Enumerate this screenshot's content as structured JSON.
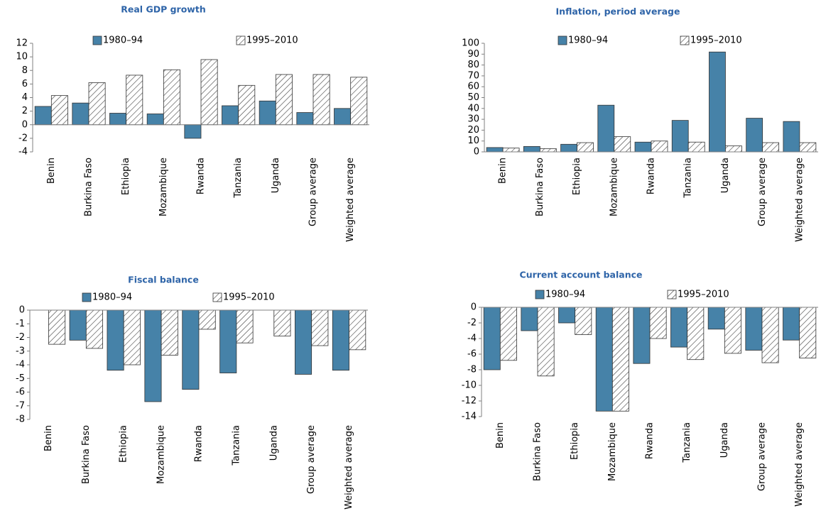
{
  "chart_data": [
    {
      "type": "bar",
      "title": "Real GDP growth",
      "categories": [
        "Benin",
        "Burkina Faso",
        "Ethiopia",
        "Mozambique",
        "Rwanda",
        "Tanzania",
        "Uganda",
        "Group average",
        "Weighted average"
      ],
      "series": [
        {
          "name": "1980–94",
          "color": "#4682a8",
          "values": [
            2.7,
            3.2,
            1.7,
            1.6,
            -2.0,
            2.8,
            3.5,
            1.8,
            2.4
          ]
        },
        {
          "name": "1995–2010",
          "color": "#404040",
          "hatch": true,
          "values": [
            4.3,
            6.2,
            7.3,
            8.1,
            9.6,
            5.8,
            7.4,
            7.4,
            7.0
          ]
        }
      ],
      "ylim": [
        -4,
        12
      ],
      "yticks": [
        -4,
        -2,
        0,
        2,
        4,
        6,
        8,
        10,
        12
      ],
      "legend": "top"
    },
    {
      "type": "bar",
      "title": "Inflation, period average",
      "categories": [
        "Benin",
        "Burkina Faso",
        "Ethiopia",
        "Mozambique",
        "Rwanda",
        "Tanzania",
        "Uganda",
        "Group average",
        "Weighted average"
      ],
      "series": [
        {
          "name": "1980–94",
          "color": "#4682a8",
          "values": [
            4,
            5,
            7,
            43,
            9,
            29,
            92,
            31,
            28
          ]
        },
        {
          "name": "1995–2010",
          "color": "#404040",
          "hatch": true,
          "values": [
            3.5,
            3,
            8.5,
            14,
            10,
            9,
            5.5,
            8.5,
            8.5
          ]
        }
      ],
      "ylim": [
        0,
        100
      ],
      "yticks": [
        0,
        10,
        20,
        30,
        40,
        50,
        60,
        70,
        80,
        90,
        100
      ],
      "legend": "top"
    },
    {
      "type": "bar",
      "title": "Fiscal balance",
      "categories": [
        "Benin",
        "Burkina Faso",
        "Ethiopia",
        "Mozambique",
        "Rwanda",
        "Tanzania",
        "Uganda",
        "Group average",
        "Weighted average"
      ],
      "series": [
        {
          "name": "1980–94",
          "color": "#4682a8",
          "values": [
            null,
            -2.2,
            -4.4,
            -6.7,
            -5.8,
            -4.6,
            null,
            -4.7,
            -4.4
          ]
        },
        {
          "name": "1995–2010",
          "color": "#404040",
          "hatch": true,
          "values": [
            -2.5,
            -2.8,
            -4.0,
            -3.3,
            -1.4,
            -2.4,
            -1.9,
            -2.6,
            -2.9
          ]
        }
      ],
      "ylim": [
        -8,
        0
      ],
      "yticks": [
        -8,
        -7,
        -6,
        -5,
        -4,
        -3,
        -2,
        -1,
        0
      ],
      "legend": "top"
    },
    {
      "type": "bar",
      "title": "Current account balance",
      "categories": [
        "Benin",
        "Burkina Faso",
        "Ethiopia",
        "Mozambique",
        "Rwanda",
        "Tanzania",
        "Uganda",
        "Group average",
        "Weighted average"
      ],
      "series": [
        {
          "name": "1980–94",
          "color": "#4682a8",
          "values": [
            -8.0,
            -3.0,
            -2.0,
            -13.3,
            -7.2,
            -5.1,
            -2.8,
            -5.5,
            -4.2
          ]
        },
        {
          "name": "1995–2010",
          "color": "#404040",
          "hatch": true,
          "values": [
            -6.8,
            -8.8,
            -3.5,
            -13.3,
            -4.0,
            -6.7,
            -5.9,
            -7.1,
            -6.5
          ]
        }
      ],
      "ylim": [
        -14,
        0
      ],
      "yticks": [
        -14,
        -12,
        -10,
        -8,
        -6,
        -4,
        -2,
        0
      ],
      "legend": "top"
    }
  ]
}
